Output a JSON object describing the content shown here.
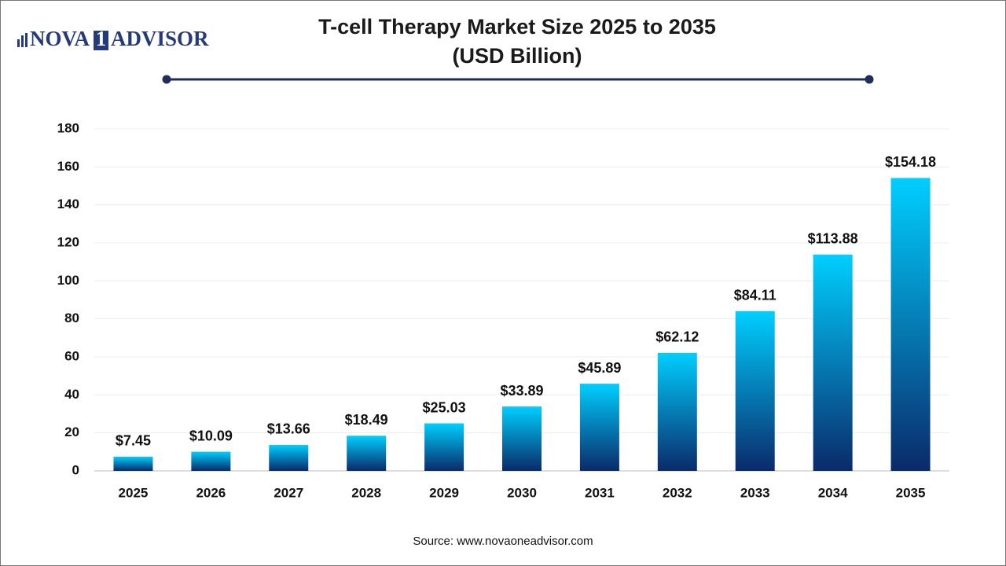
{
  "logo": {
    "left": "NOVA",
    "mark": "1",
    "right": "ADVISOR"
  },
  "chart_data": {
    "type": "bar",
    "title": "T-cell Therapy Market Size 2025 to 2035",
    "subtitle": "(USD Billion)",
    "categories": [
      "2025",
      "2026",
      "2027",
      "2028",
      "2029",
      "2030",
      "2031",
      "2032",
      "2033",
      "2034",
      "2035"
    ],
    "values": [
      7.45,
      10.09,
      13.66,
      18.49,
      25.03,
      33.89,
      45.89,
      62.12,
      84.11,
      113.88,
      154.18
    ],
    "value_labels": [
      "$7.45",
      "$10.09",
      "$13.66",
      "$18.49",
      "$25.03",
      "$33.89",
      "$45.89",
      "$62.12",
      "$84.11",
      "$113.88",
      "$154.18"
    ],
    "colors": [
      "#00cfff",
      "#0a2a6a"
    ],
    "ylim": [
      0,
      180
    ],
    "yticks": [
      0,
      20,
      40,
      60,
      80,
      100,
      120,
      140,
      160,
      180
    ],
    "grid": true,
    "source": "Source: www.novaoneadvisor.com"
  }
}
